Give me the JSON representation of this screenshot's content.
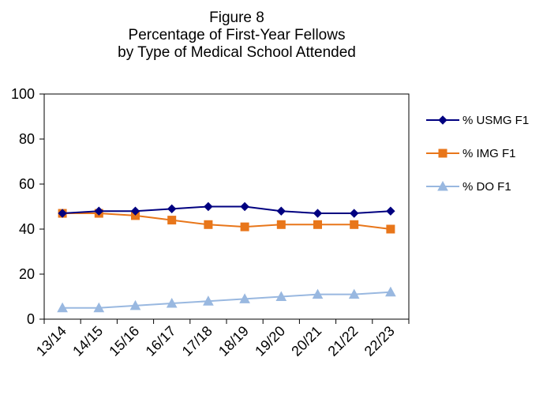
{
  "chart_data": {
    "type": "line",
    "title_lines": [
      "Figure 8",
      "Percentage of First-Year Fellows",
      "by Type of Medical School Attended"
    ],
    "categories": [
      "13/14",
      "14/15",
      "15/16",
      "16/17",
      "17/18",
      "18/19",
      "19/20",
      "20/21",
      "21/22",
      "22/23"
    ],
    "ylim": [
      0,
      100
    ],
    "yticks": [
      0,
      20,
      40,
      60,
      80,
      100
    ],
    "grid": false,
    "legend_position": "right",
    "series": [
      {
        "name": "% USMG F1",
        "marker": "diamond",
        "color": "#000080",
        "values": [
          47,
          48,
          48,
          49,
          50,
          50,
          48,
          47,
          47,
          48
        ]
      },
      {
        "name": "% IMG F1",
        "marker": "square",
        "color": "#E8761A",
        "values": [
          47,
          47,
          46,
          44,
          42,
          41,
          42,
          42,
          42,
          40
        ]
      },
      {
        "name": "% DO F1",
        "marker": "triangle",
        "color": "#99B8E0",
        "values": [
          5,
          5,
          6,
          7,
          8,
          9,
          10,
          11,
          11,
          12
        ]
      }
    ]
  }
}
